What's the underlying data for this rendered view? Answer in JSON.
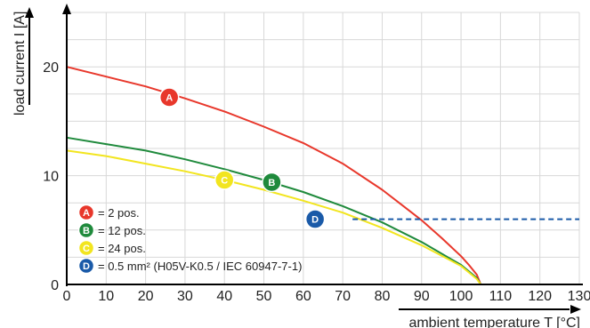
{
  "chart_data": {
    "type": "line",
    "xlabel": "ambient temperature T [°C]",
    "ylabel": "load current I [A]",
    "xlim": [
      0,
      130
    ],
    "ylim": [
      0,
      25
    ],
    "x_ticks": [
      0,
      10,
      20,
      30,
      40,
      50,
      60,
      70,
      80,
      90,
      100,
      110,
      120,
      130
    ],
    "y_ticks": [
      0,
      10,
      20
    ],
    "grid": true,
    "legend_position": "bottom-left",
    "series": [
      {
        "id": "A",
        "color": "#e8372b",
        "x": [
          0,
          10,
          20,
          30,
          40,
          50,
          60,
          70,
          80,
          85,
          90,
          95,
          100,
          102,
          104,
          105
        ],
        "y": [
          20,
          19.1,
          18.2,
          17.1,
          15.9,
          14.5,
          13.0,
          11.1,
          8.7,
          7.3,
          5.9,
          4.3,
          2.6,
          1.8,
          0.9,
          0
        ]
      },
      {
        "id": "B",
        "color": "#1f8a3c",
        "x": [
          0,
          10,
          20,
          30,
          40,
          50,
          60,
          70,
          80,
          90,
          100,
          104,
          105
        ],
        "y": [
          13.5,
          12.9,
          12.3,
          11.5,
          10.6,
          9.6,
          8.5,
          7.2,
          5.7,
          3.9,
          1.8,
          0.6,
          0
        ]
      },
      {
        "id": "C",
        "color": "#f2e51f",
        "x": [
          0,
          10,
          20,
          30,
          40,
          50,
          60,
          70,
          80,
          90,
          100,
          104,
          105
        ],
        "y": [
          12.3,
          11.8,
          11.1,
          10.4,
          9.6,
          8.7,
          7.7,
          6.6,
          5.2,
          3.6,
          1.7,
          0.5,
          0
        ]
      },
      {
        "id": "D",
        "color": "#1a5aa8",
        "style": "dashed",
        "x": [
          72.5,
          130
        ],
        "y": [
          6,
          6
        ]
      }
    ],
    "markers": [
      {
        "label": "A",
        "color": "#e8372b",
        "x": 26,
        "y": 17.2
      },
      {
        "label": "B",
        "color": "#1f8a3c",
        "x": 52,
        "y": 9.4
      },
      {
        "label": "C",
        "color": "#f2e51f",
        "x": 40,
        "y": 9.6
      },
      {
        "label": "D",
        "color": "#1a5aa8",
        "x": 63,
        "y": 6.0
      }
    ],
    "legend": [
      {
        "label": "A",
        "color": "#e8372b",
        "text": "= 2 pos."
      },
      {
        "label": "B",
        "color": "#1f8a3c",
        "text": "= 12 pos."
      },
      {
        "label": "C",
        "color": "#f2e51f",
        "text": "= 24 pos."
      },
      {
        "label": "D",
        "color": "#1a5aa8",
        "text": "= 0.5 mm² (H05V-K0.5 / IEC 60947-7-1)"
      }
    ]
  }
}
